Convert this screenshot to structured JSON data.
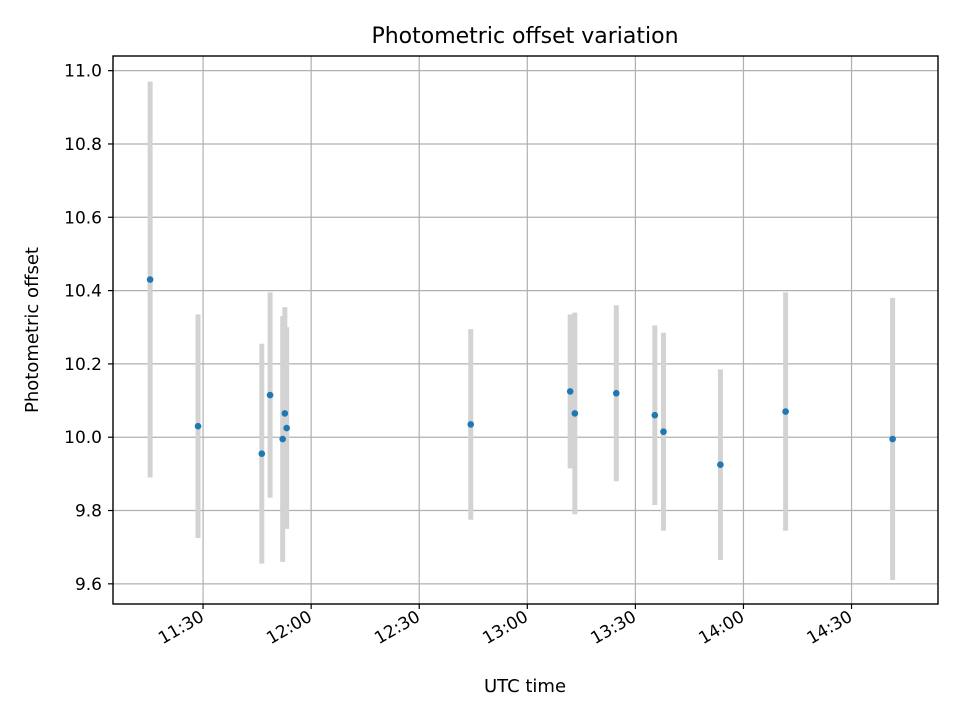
{
  "chart_data": {
    "type": "scatter",
    "title": "Photometric offset variation",
    "xlabel": "UTC time",
    "ylabel": "Photometric offset",
    "x_unit": "time of day (UTC)",
    "xlim": [
      "11:05",
      "14:54"
    ],
    "ylim": [
      9.545,
      11.04
    ],
    "xticks": [
      "11:30",
      "12:00",
      "12:30",
      "13:00",
      "13:30",
      "14:00",
      "14:30"
    ],
    "yticks": [
      9.6,
      9.8,
      10.0,
      10.2,
      10.4,
      10.6,
      10.8,
      11.0
    ],
    "grid": true,
    "colors": {
      "point": "#1f77b4",
      "errorbar": "#d3d3d3"
    },
    "points": [
      {
        "t": "11:15:18",
        "y": 10.43,
        "err": 0.54
      },
      {
        "t": "11:28:36",
        "y": 10.03,
        "err": 0.305
      },
      {
        "t": "11:46:18",
        "y": 9.955,
        "err": 0.3
      },
      {
        "t": "11:48:36",
        "y": 10.115,
        "err": 0.28
      },
      {
        "t": "11:52:06",
        "y": 9.995,
        "err": 0.335
      },
      {
        "t": "11:52:42",
        "y": 10.065,
        "err": 0.29
      },
      {
        "t": "11:53:12",
        "y": 10.025,
        "err": 0.275
      },
      {
        "t": "12:44:18",
        "y": 10.035,
        "err": 0.26
      },
      {
        "t": "13:11:54",
        "y": 10.125,
        "err": 0.21
      },
      {
        "t": "13:13:12",
        "y": 10.065,
        "err": 0.275
      },
      {
        "t": "13:24:42",
        "y": 10.12,
        "err": 0.24
      },
      {
        "t": "13:35:24",
        "y": 10.06,
        "err": 0.245
      },
      {
        "t": "13:37:48",
        "y": 10.015,
        "err": 0.27
      },
      {
        "t": "13:53:36",
        "y": 9.925,
        "err": 0.26
      },
      {
        "t": "14:11:42",
        "y": 10.07,
        "err": 0.325
      },
      {
        "t": "14:41:24",
        "y": 9.995,
        "err": 0.385
      }
    ]
  }
}
